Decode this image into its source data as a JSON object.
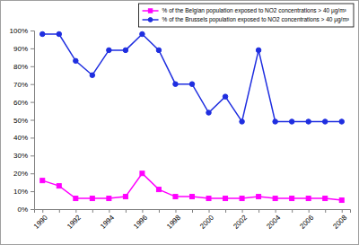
{
  "chart_data": {
    "type": "line",
    "categories": [
      "1990",
      null,
      "1992",
      null,
      "1994",
      null,
      "1996",
      null,
      "1998",
      null,
      "2000",
      null,
      "2002",
      null,
      "2004",
      null,
      "2006",
      null,
      "2008"
    ],
    "series": [
      {
        "name": "% of the Belgian population exposed to NO2 concentrations > 40 µg/m³",
        "color": "#ff00ff",
        "marker": "square",
        "values": [
          16,
          13,
          6,
          6,
          6,
          7,
          20,
          11,
          7,
          7,
          6,
          6,
          6,
          7,
          6,
          6,
          6,
          6,
          5
        ]
      },
      {
        "name": "% of the Brussels population exposed to NO2 concentrations > 40 µg/m³",
        "color": "#1f2ee0",
        "marker": "circle",
        "values": [
          98,
          98,
          83,
          75,
          89,
          89,
          98,
          89,
          70,
          70,
          54,
          63,
          49,
          89,
          49,
          49,
          49,
          49,
          49
        ]
      }
    ],
    "ylim": [
      0,
      100
    ],
    "yticks": [
      {
        "value": 0,
        "label": "0%"
      },
      {
        "value": 10,
        "label": "10%"
      },
      {
        "value": 20,
        "label": "20%"
      },
      {
        "value": 30,
        "label": "30%"
      },
      {
        "value": 40,
        "label": "40%"
      },
      {
        "value": 50,
        "label": "50%"
      },
      {
        "value": 60,
        "label": "60%"
      },
      {
        "value": 70,
        "label": "70%"
      },
      {
        "value": 80,
        "label": "80%"
      },
      {
        "value": 90,
        "label": "90%"
      },
      {
        "value": 100,
        "label": "100%"
      }
    ],
    "grid": false,
    "legend": "top-right"
  }
}
